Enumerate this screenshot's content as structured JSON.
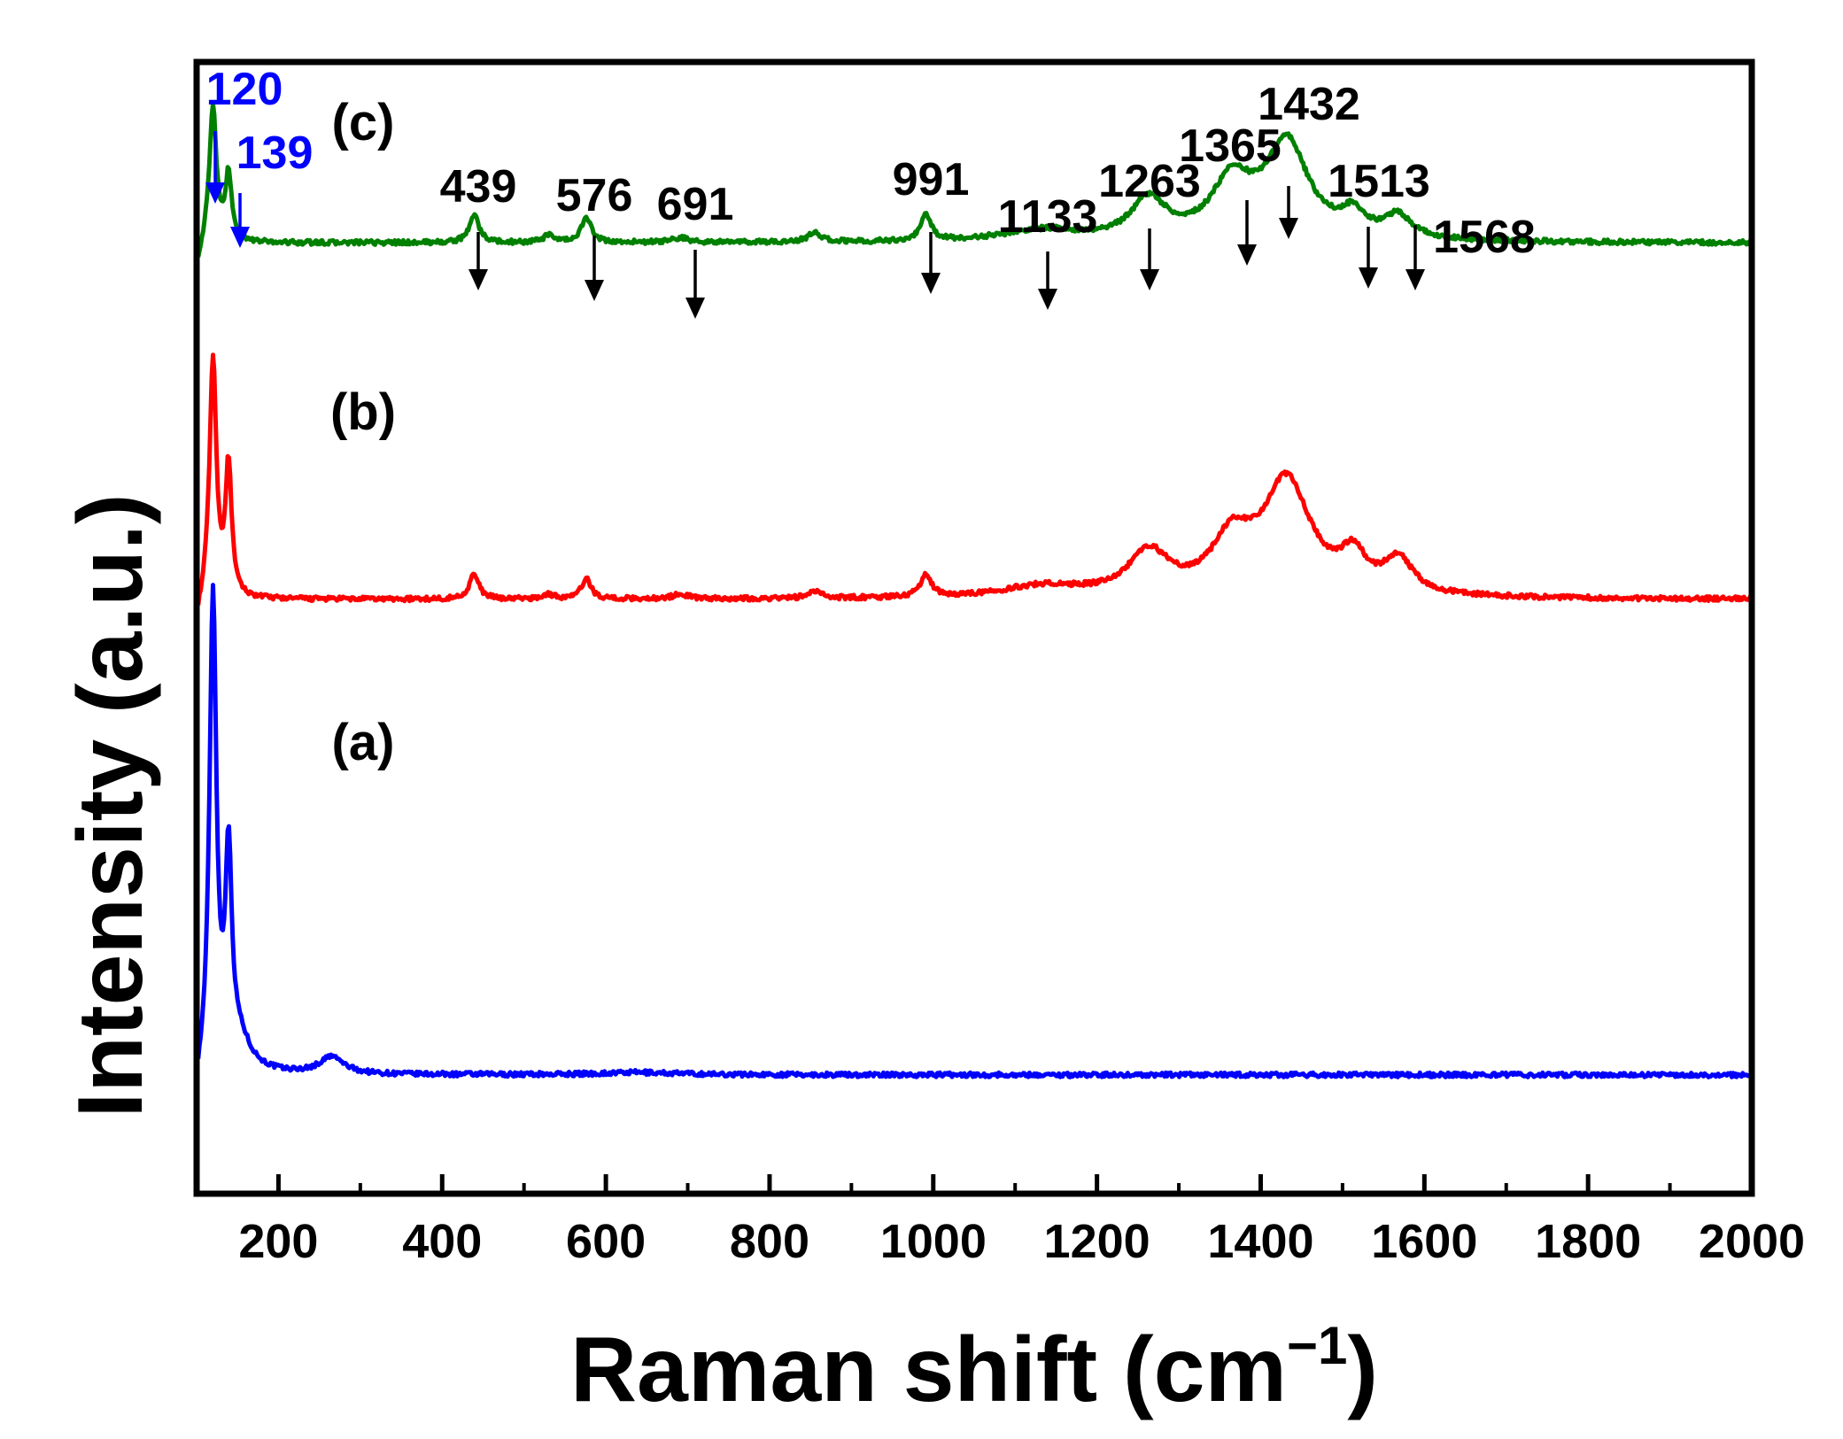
{
  "chart_data": {
    "type": "line",
    "title": "",
    "xlabel": "Raman shift (cm",
    "xlabel_sup": "−1",
    "xlabel_close": ")",
    "ylabel": "Intensity (a.u.)",
    "xlim": [
      100,
      2000
    ],
    "ylim": [
      0,
      1
    ],
    "grid": false,
    "y_tick_labels": false,
    "x_ticks": [
      200,
      400,
      600,
      800,
      1000,
      1200,
      1400,
      1600,
      1800,
      2000
    ],
    "x_tick_labels": [
      "200",
      "400",
      "600",
      "800",
      "1000",
      "1200",
      "1400",
      "1600",
      "1800",
      "2000"
    ],
    "series": [
      {
        "name": "(a)",
        "color": "#0000ff",
        "baseline": 0.105,
        "peaks": [
          [
            120,
            0.415,
            5
          ],
          [
            139,
            0.175,
            4.5
          ],
          [
            150,
            0.03,
            18
          ],
          [
            265,
            0.015,
            18
          ],
          [
            640,
            0.002,
            60
          ]
        ]
      },
      {
        "name": "(b)",
        "color": "#ff0000",
        "baseline": 0.525,
        "peaks": [
          [
            120,
            0.21,
            5
          ],
          [
            139,
            0.115,
            4.5
          ],
          [
            439,
            0.022,
            7
          ],
          [
            530,
            0.004,
            8
          ],
          [
            576,
            0.018,
            7
          ],
          [
            691,
            0.004,
            12
          ],
          [
            855,
            0.006,
            10
          ],
          [
            991,
            0.02,
            8
          ],
          [
            1133,
            0.01,
            60
          ],
          [
            1263,
            0.038,
            30
          ],
          [
            1365,
            0.045,
            30
          ],
          [
            1432,
            0.1,
            36
          ],
          [
            1513,
            0.03,
            18
          ],
          [
            1568,
            0.03,
            22
          ]
        ]
      },
      {
        "name": "(c)",
        "color": "#008000",
        "baseline": 0.84,
        "peaks": [
          [
            120,
            0.12,
            5
          ],
          [
            139,
            0.06,
            4.5
          ],
          [
            439,
            0.025,
            7
          ],
          [
            530,
            0.006,
            8
          ],
          [
            576,
            0.023,
            7
          ],
          [
            691,
            0.004,
            12
          ],
          [
            855,
            0.008,
            10
          ],
          [
            991,
            0.022,
            8
          ],
          [
            1133,
            0.01,
            60
          ],
          [
            1263,
            0.035,
            26
          ],
          [
            1365,
            0.05,
            30
          ],
          [
            1432,
            0.085,
            32
          ],
          [
            1513,
            0.02,
            18
          ],
          [
            1568,
            0.02,
            20
          ]
        ]
      }
    ],
    "annotations": [
      {
        "label": "120",
        "x": 120,
        "color": "#0000ff"
      },
      {
        "label": "139",
        "x": 139,
        "color": "#0000ff"
      },
      {
        "label": "439",
        "x": 439,
        "color": "#000000"
      },
      {
        "label": "576",
        "x": 576,
        "color": "#000000"
      },
      {
        "label": "691",
        "x": 691,
        "color": "#000000"
      },
      {
        "label": "991",
        "x": 991,
        "color": "#000000"
      },
      {
        "label": "1133",
        "x": 1133,
        "color": "#000000"
      },
      {
        "label": "1263",
        "x": 1263,
        "color": "#000000"
      },
      {
        "label": "1365",
        "x": 1365,
        "color": "#000000"
      },
      {
        "label": "1432",
        "x": 1432,
        "color": "#000000"
      },
      {
        "label": "1513",
        "x": 1513,
        "color": "#000000"
      },
      {
        "label": "1568",
        "x": 1568,
        "color": "#000000"
      }
    ]
  }
}
